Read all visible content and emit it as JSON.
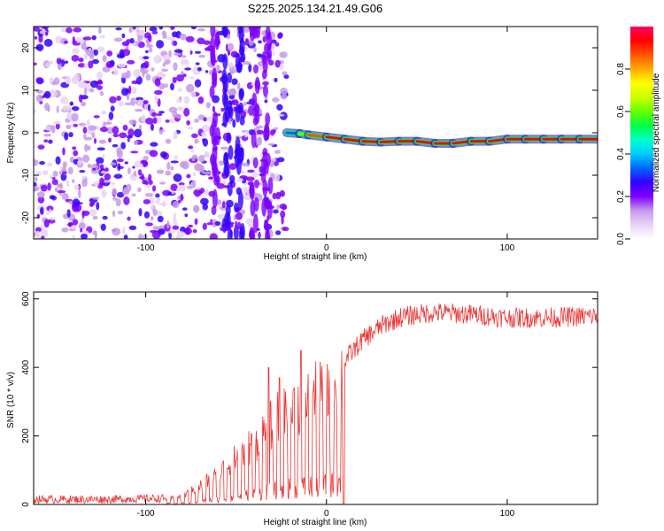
{
  "title": "S225.2025.134.21.49.G06",
  "chart_data": [
    {
      "type": "heatmap",
      "xlabel": "Height of straight line (km)",
      "ylabel": "Frequency (Hz)",
      "xlim": [
        -162,
        150
      ],
      "ylim": [
        -25,
        25
      ],
      "x_ticks": [
        -100,
        0,
        100
      ],
      "y_ticks": [
        -20,
        -10,
        0,
        10,
        20
      ],
      "grid": false,
      "noise_region_x": [
        -162,
        -22
      ],
      "signal_line": {
        "x": [
          -22,
          -15,
          -10,
          0,
          10,
          20,
          30,
          40,
          50,
          60,
          70,
          80,
          90,
          100,
          110,
          120,
          130,
          140,
          150
        ],
        "frequency": [
          0.0,
          -0.2,
          -0.5,
          -1.0,
          -1.5,
          -2.0,
          -2.2,
          -2.0,
          -2.0,
          -2.5,
          -2.5,
          -2.0,
          -2.0,
          -1.5,
          -1.5,
          -1.5,
          -1.5,
          -1.5,
          -1.5
        ],
        "amplitude": [
          0.35,
          0.6,
          0.85,
          0.95,
          0.9,
          0.95,
          0.9,
          0.95,
          0.95,
          0.9,
          0.95,
          0.9,
          0.95,
          0.9,
          0.95,
          0.9,
          0.95,
          0.9,
          0.9
        ]
      },
      "colorbar": {
        "label": "Normalized spectral amplitude",
        "range": [
          0,
          1
        ],
        "ticks": [
          "0.0",
          "0.2",
          "0.4",
          "0.6",
          "0.8"
        ],
        "colors": [
          "#ffffff",
          "#e8d4f5",
          "#c79ae8",
          "#7f00ff",
          "#3300ff",
          "#0066ff",
          "#00ccff",
          "#00ffcc",
          "#00ff44",
          "#66ff00",
          "#ccff00",
          "#ffff00",
          "#ffaa00",
          "#ff5500",
          "#ff0000",
          "#ff0066"
        ]
      }
    },
    {
      "type": "line",
      "xlabel": "Height of straight line (km)",
      "ylabel": "SNR (10 * v/v)",
      "xlim": [
        -162,
        150
      ],
      "ylim": [
        0,
        620
      ],
      "x_ticks": [
        -100,
        0,
        100
      ],
      "y_ticks": [
        0,
        200,
        400,
        600
      ],
      "grid": false,
      "color": "#ee3333",
      "envelope": {
        "x": [
          -162,
          -120,
          -90,
          -80,
          -70,
          -60,
          -50,
          -40,
          -30,
          -20,
          -10,
          0,
          10,
          20,
          30,
          40,
          50,
          60,
          80,
          100,
          120,
          150
        ],
        "y": [
          15,
          15,
          18,
          25,
          60,
          100,
          150,
          200,
          260,
          310,
          340,
          360,
          420,
          480,
          520,
          545,
          555,
          560,
          555,
          545,
          545,
          550
        ]
      },
      "dips_to_zero_x": [
        9,
        10
      ],
      "spikes": {
        "x": [
          -32,
          -26,
          -14
        ],
        "y": [
          400,
          370,
          450
        ]
      }
    }
  ]
}
